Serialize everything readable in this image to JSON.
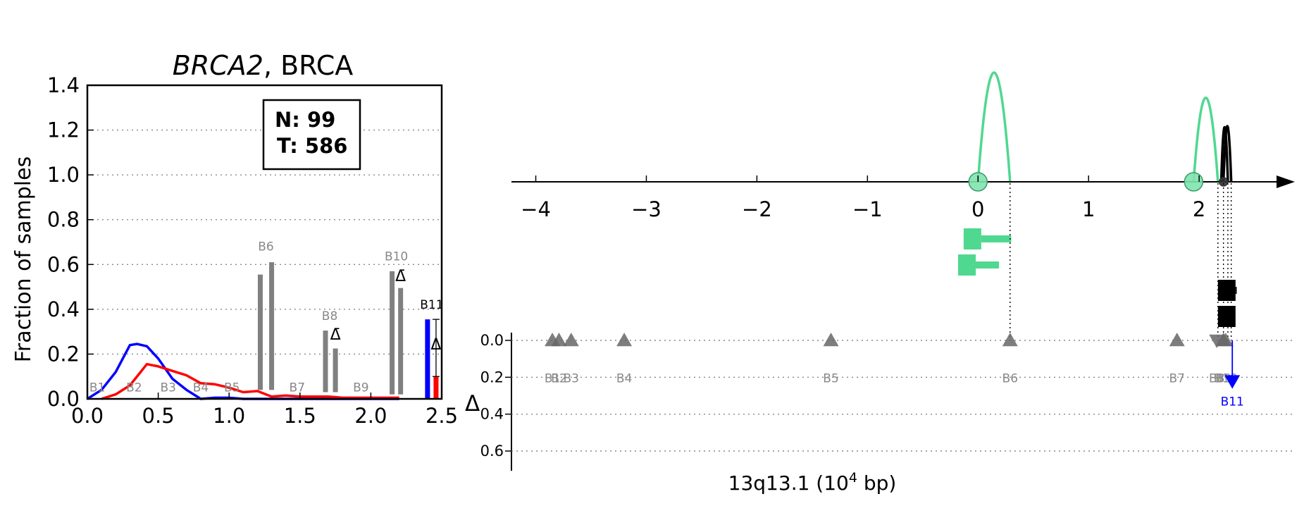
{
  "chart_data": [
    {
      "type": "line",
      "title_gene": "BRCA2",
      "title_rest": ", BRCA",
      "ylabel": "Fraction of samples",
      "xlim": [
        0.0,
        2.5
      ],
      "ylim": [
        0.0,
        1.4
      ],
      "x_ticks": [
        "0.0",
        "0.5",
        "1.0",
        "1.5",
        "2.0",
        "2.5"
      ],
      "y_ticks": [
        "0.0",
        "0.2",
        "0.4",
        "0.6",
        "0.8",
        "1.0",
        "1.2",
        "1.4"
      ],
      "grid": "horizontal dotted",
      "counts": {
        "n_label": "N: 99",
        "t_label": "T: 586"
      },
      "series": [
        {
          "color": "#0000ff",
          "x": [
            0.0,
            0.1,
            0.2,
            0.3,
            0.35,
            0.42,
            0.5,
            0.6,
            0.7,
            0.8,
            0.9,
            1.0,
            1.1,
            1.2,
            1.3,
            1.4,
            1.5,
            1.6,
            1.7,
            1.8,
            1.9,
            2.0,
            2.1,
            2.2
          ],
          "values": [
            0.0,
            0.04,
            0.12,
            0.24,
            0.245,
            0.235,
            0.18,
            0.09,
            0.04,
            0.0,
            0.005,
            0.005,
            0.0,
            0.0,
            0.0,
            0.0,
            0.0,
            0.0,
            0.0,
            0.0,
            0.0,
            0.0,
            0.0,
            0.0
          ]
        },
        {
          "color": "#ff0000",
          "x": [
            0.1,
            0.2,
            0.3,
            0.42,
            0.5,
            0.6,
            0.7,
            0.8,
            0.9,
            1.0,
            1.1,
            1.2,
            1.3,
            1.4,
            1.5,
            1.6,
            1.7,
            1.8,
            1.9,
            2.0,
            2.1,
            2.2
          ],
          "values": [
            0.0,
            0.02,
            0.06,
            0.155,
            0.145,
            0.125,
            0.105,
            0.07,
            0.065,
            0.05,
            0.03,
            0.035,
            0.01,
            0.015,
            0.01,
            0.01,
            0.01,
            0.005,
            0.005,
            0.005,
            0.005,
            0.005
          ]
        }
      ],
      "bars": [
        {
          "x": 1.22,
          "y0": 0.04,
          "y1": 0.555,
          "color": "#808080"
        },
        {
          "x": 1.3,
          "y0": 0.04,
          "y1": 0.61,
          "color": "#808080"
        },
        {
          "x": 1.68,
          "y0": 0.03,
          "y1": 0.305,
          "color": "#808080"
        },
        {
          "x": 1.75,
          "y0": 0.03,
          "y1": 0.225,
          "color": "#808080"
        },
        {
          "x": 2.15,
          "y0": 0.02,
          "y1": 0.57,
          "color": "#808080"
        },
        {
          "x": 2.21,
          "y0": 0.02,
          "y1": 0.495,
          "color": "#808080"
        },
        {
          "x": 2.4,
          "y0": 0.0,
          "y1": 0.355,
          "color": "#0000ff"
        },
        {
          "x": 2.46,
          "y0": 0.0,
          "y1": 0.1,
          "color": "#ff0000"
        }
      ],
      "bin_labels": [
        {
          "text": "B1",
          "x": 0.07,
          "y": 0.02,
          "color": "#888888"
        },
        {
          "text": "B2",
          "x": 0.33,
          "y": 0.02,
          "color": "#888888"
        },
        {
          "text": "B3",
          "x": 0.57,
          "y": 0.02,
          "color": "#888888"
        },
        {
          "text": "B4",
          "x": 0.8,
          "y": 0.02,
          "color": "#888888"
        },
        {
          "text": "B5",
          "x": 1.02,
          "y": 0.02,
          "color": "#888888"
        },
        {
          "text": "B6",
          "x": 1.26,
          "y": 0.65,
          "color": "#888888"
        },
        {
          "text": "B7",
          "x": 1.48,
          "y": 0.02,
          "color": "#888888"
        },
        {
          "text": "B8",
          "x": 1.71,
          "y": 0.34,
          "color": "#888888"
        },
        {
          "text": "B9",
          "x": 1.93,
          "y": 0.02,
          "color": "#888888"
        },
        {
          "text": "B10",
          "x": 2.18,
          "y": 0.605,
          "color": "#888888"
        },
        {
          "text": "B11",
          "x": 2.43,
          "y": 0.39,
          "color": "#000000"
        }
      ],
      "deltas": [
        {
          "label": "Δ̄",
          "x": 1.75,
          "y": 0.265
        },
        {
          "label": "Δ̄",
          "x": 2.21,
          "y": 0.525
        },
        {
          "label": "Δ",
          "x": 2.46,
          "y": 0.22
        }
      ],
      "error_bar": {
        "x": 2.46,
        "y_low": 0.1,
        "y_high": 0.355
      }
    },
    {
      "type": "scatter",
      "xlabel_main": "13q13.1 (10",
      "xlabel_sup": "4",
      "xlabel_end": " bp)",
      "xlim": [
        -4.22,
        2.7
      ],
      "x_ticks": [
        "−4",
        "−3",
        "−2",
        "−1",
        "0",
        "1",
        "2"
      ],
      "x_tick_values": [
        -4,
        -3,
        -2,
        -1,
        0,
        1,
        2
      ],
      "delta_axis_label": "Δ",
      "delta_ticks": [
        "0.0",
        "0.2",
        "0.4",
        "0.6"
      ],
      "delta_ylim": [
        0.0,
        0.7
      ],
      "arcs": [
        {
          "x1": 0.0,
          "x2": 0.29,
          "height": 1.0,
          "color": "#4fd890"
        },
        {
          "x1": 1.95,
          "x2": 2.17,
          "height": 0.77,
          "color": "#4fd890"
        },
        {
          "x1": 2.2,
          "x2": 2.26,
          "height": 0.5,
          "color": "#000000"
        },
        {
          "x1": 2.22,
          "x2": 2.29,
          "height": 0.51,
          "color": "#000000"
        }
      ],
      "anchors": [
        {
          "x": 0.0,
          "color": "#4fd890",
          "size": "large"
        },
        {
          "x": 1.95,
          "color": "#4fd890",
          "size": "large"
        },
        {
          "x": 2.22,
          "color": "#333333",
          "size": "small"
        }
      ],
      "exons": [
        {
          "x_start": -0.13,
          "x_end": 0.3,
          "level": 0,
          "color": "#4fd890"
        },
        {
          "x_start": -0.18,
          "x_end": 0.19,
          "level": 1,
          "color": "#4fd890"
        },
        {
          "x_start": 2.17,
          "x_end": 2.34,
          "level": 2,
          "color": "#000000"
        },
        {
          "x_start": 2.17,
          "x_end": 2.3,
          "level": 3,
          "color": "#000000"
        }
      ],
      "guide_lines": [
        0.29,
        2.17,
        2.22,
        2.26,
        2.29
      ],
      "breakpoints": [
        {
          "label": "B1",
          "x": -3.85,
          "delta": 0.0,
          "dir": "up",
          "color": "#666666"
        },
        {
          "label": "B2",
          "x": -3.79,
          "delta": 0.0,
          "dir": "up",
          "color": "#666666"
        },
        {
          "label": "B3",
          "x": -3.68,
          "delta": 0.0,
          "dir": "up",
          "color": "#666666"
        },
        {
          "label": "B4",
          "x": -3.2,
          "delta": 0.0,
          "dir": "up",
          "color": "#666666"
        },
        {
          "label": "B5",
          "x": -1.33,
          "delta": 0.0,
          "dir": "up",
          "color": "#666666"
        },
        {
          "label": "B6",
          "x": 0.29,
          "delta": 0.0,
          "dir": "up",
          "color": "#666666"
        },
        {
          "label": "B7",
          "x": 1.8,
          "delta": 0.0,
          "dir": "up",
          "color": "#666666"
        },
        {
          "label": "B8",
          "x": 2.16,
          "delta": 0.0,
          "dir": "down",
          "color": "#666666"
        },
        {
          "label": "B9",
          "x": 2.22,
          "delta": 0.0,
          "dir": "up",
          "color": "#666666"
        },
        {
          "label": "B10",
          "x": 2.24,
          "delta": 0.0,
          "dir": "up",
          "color": "#666666"
        },
        {
          "label": "B11",
          "x": 2.3,
          "delta": 0.22,
          "dir": "down",
          "color": "#0000ff"
        }
      ]
    }
  ]
}
